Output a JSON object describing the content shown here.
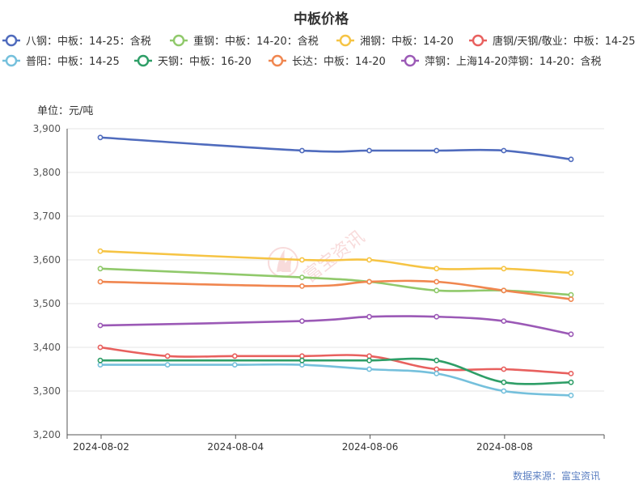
{
  "chart_data": {
    "type": "line",
    "title": "中板价格",
    "unit_label": "单位：元/吨",
    "source": "数据来源：富宝资讯",
    "watermark": "富宝资讯",
    "legend_position": "top",
    "grid": true,
    "ylim": [
      3200,
      3900
    ],
    "y_ticks": [
      "3,200",
      "3,300",
      "3,400",
      "3,500",
      "3,600",
      "3,700",
      "3,800",
      "3,900"
    ],
    "y_tick_values": [
      3200,
      3300,
      3400,
      3500,
      3600,
      3700,
      3800,
      3900
    ],
    "x_ticks": [
      "2024-08-02",
      "2024-08-04",
      "2024-08-06",
      "2024-08-08"
    ],
    "x_tick_values": [
      "2024-08-02",
      "2024-08-04",
      "2024-08-06",
      "2024-08-08"
    ],
    "x_range": [
      "2024-08-02",
      "2024-08-09"
    ],
    "series": [
      {
        "name": "八钢：中板：14-25：含税",
        "color": "#4f6bbd",
        "points": [
          [
            "2024-08-02",
            3880
          ],
          [
            "2024-08-05",
            3850
          ],
          [
            "2024-08-06",
            3850
          ],
          [
            "2024-08-07",
            3850
          ],
          [
            "2024-08-08",
            3850
          ],
          [
            "2024-08-09",
            3830
          ]
        ]
      },
      {
        "name": "重钢：中板：14-20：含税",
        "color": "#90c96b",
        "points": [
          [
            "2024-08-02",
            3580
          ],
          [
            "2024-08-05",
            3560
          ],
          [
            "2024-08-06",
            3550
          ],
          [
            "2024-08-07",
            3530
          ],
          [
            "2024-08-08",
            3530
          ],
          [
            "2024-08-09",
            3520
          ]
        ]
      },
      {
        "name": "湘钢：中板：14-20",
        "color": "#f6c444",
        "points": [
          [
            "2024-08-02",
            3620
          ],
          [
            "2024-08-05",
            3600
          ],
          [
            "2024-08-06",
            3600
          ],
          [
            "2024-08-07",
            3580
          ],
          [
            "2024-08-08",
            3580
          ],
          [
            "2024-08-09",
            3570
          ]
        ]
      },
      {
        "name": "唐钢/天钢/敬业：中板：14-25",
        "color": "#e8605e",
        "points": [
          [
            "2024-08-02",
            3400
          ],
          [
            "2024-08-03",
            3380
          ],
          [
            "2024-08-04",
            3380
          ],
          [
            "2024-08-05",
            3380
          ],
          [
            "2024-08-06",
            3380
          ],
          [
            "2024-08-07",
            3350
          ],
          [
            "2024-08-08",
            3350
          ],
          [
            "2024-08-09",
            3340
          ]
        ]
      },
      {
        "name": "普阳：中板：14-25",
        "color": "#75c0dc",
        "points": [
          [
            "2024-08-02",
            3360
          ],
          [
            "2024-08-03",
            3360
          ],
          [
            "2024-08-04",
            3360
          ],
          [
            "2024-08-05",
            3360
          ],
          [
            "2024-08-06",
            3350
          ],
          [
            "2024-08-07",
            3340
          ],
          [
            "2024-08-08",
            3300
          ],
          [
            "2024-08-09",
            3290
          ]
        ]
      },
      {
        "name": "天钢：中板：16-20",
        "color": "#2e9e67",
        "points": [
          [
            "2024-08-02",
            3370
          ],
          [
            "2024-08-05",
            3370
          ],
          [
            "2024-08-06",
            3370
          ],
          [
            "2024-08-07",
            3370
          ],
          [
            "2024-08-08",
            3320
          ],
          [
            "2024-08-09",
            3320
          ]
        ]
      },
      {
        "name": "长达：中板：14-20",
        "color": "#f0864f",
        "points": [
          [
            "2024-08-02",
            3550
          ],
          [
            "2024-08-05",
            3540
          ],
          [
            "2024-08-06",
            3550
          ],
          [
            "2024-08-07",
            3550
          ],
          [
            "2024-08-08",
            3530
          ],
          [
            "2024-08-09",
            3510
          ]
        ]
      },
      {
        "name": "萍钢：上海14-20萍钢：14-20：含税",
        "color": "#9b59b6",
        "points": [
          [
            "2024-08-02",
            3450
          ],
          [
            "2024-08-05",
            3460
          ],
          [
            "2024-08-06",
            3470
          ],
          [
            "2024-08-07",
            3470
          ],
          [
            "2024-08-08",
            3460
          ],
          [
            "2024-08-09",
            3430
          ]
        ]
      }
    ]
  }
}
